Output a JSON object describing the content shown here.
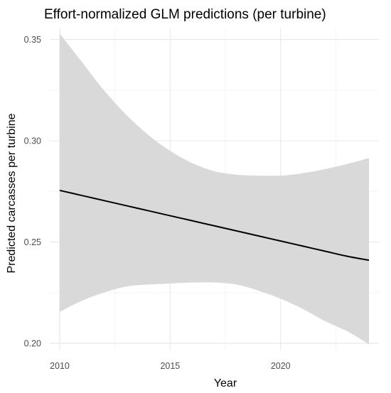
{
  "chart_data": {
    "type": "line",
    "title": "Effort-normalized GLM predictions (per turbine)",
    "xlabel": "Year",
    "ylabel": "Predicted carcasses per turbine",
    "xlim": [
      2009.55,
      2024.45
    ],
    "ylim": [
      0.1965,
      0.3555
    ],
    "x_ticks": [
      2010,
      2015,
      2020
    ],
    "y_ticks": [
      0.2,
      0.25,
      0.3,
      0.35
    ],
    "x_tick_labels": [
      "2010",
      "2015",
      "2020"
    ],
    "y_tick_labels": [
      "0.20",
      "0.25",
      "0.30",
      "0.35"
    ],
    "grid": true,
    "series": [
      {
        "x": [
          2010,
          2011,
          2012,
          2013,
          2014,
          2015,
          2016,
          2017,
          2018,
          2019,
          2020,
          2021,
          2022,
          2023,
          2024
        ],
        "y": [
          0.2755,
          0.273,
          0.2705,
          0.268,
          0.2655,
          0.263,
          0.2605,
          0.258,
          0.2555,
          0.253,
          0.2505,
          0.248,
          0.2455,
          0.243,
          0.241
        ],
        "lower": [
          0.2155,
          0.221,
          0.225,
          0.228,
          0.229,
          0.2295,
          0.23,
          0.23,
          0.229,
          0.226,
          0.222,
          0.217,
          0.211,
          0.206,
          0.1995
        ],
        "upper": [
          0.353,
          0.339,
          0.325,
          0.313,
          0.303,
          0.295,
          0.289,
          0.285,
          0.2833,
          0.2828,
          0.2828,
          0.284,
          0.286,
          0.2885,
          0.2915
        ],
        "color": "#000000",
        "band_color": "#d9d9d9"
      }
    ]
  }
}
